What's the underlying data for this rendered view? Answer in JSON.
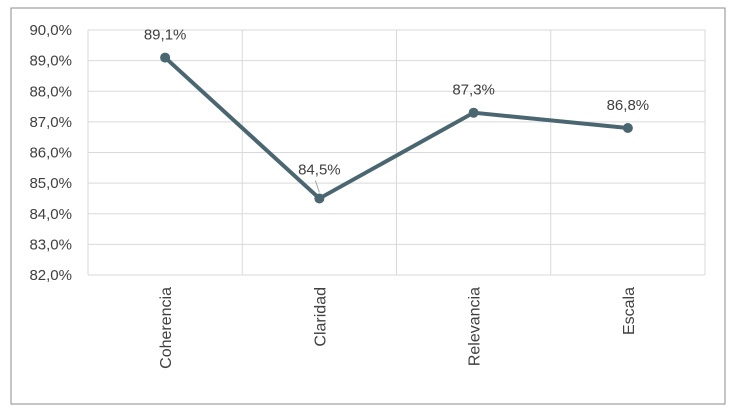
{
  "chart_data": {
    "type": "line",
    "title": "",
    "xlabel": "",
    "ylabel": "",
    "categories": [
      "Coherencia",
      "Claridad",
      "Relevancia",
      "Escala"
    ],
    "series": [
      {
        "values": [
          89.1,
          84.5,
          87.3,
          86.8
        ],
        "labels": [
          "89,1%",
          "84,5%",
          "87,3%",
          "86,8%"
        ]
      }
    ],
    "ylim": [
      82,
      90
    ],
    "yticks": [
      90,
      89,
      88,
      87,
      86,
      85,
      84,
      83,
      82
    ],
    "ytick_labels": [
      "90,0%",
      "89,0%",
      "88,0%",
      "87,0%",
      "86,0%",
      "85,0%",
      "84,0%",
      "83,0%",
      "82,0%"
    ],
    "grid": true,
    "legend": "none",
    "colors": {
      "line": "#4a6670",
      "grid": "#d9d9d9",
      "axis_text": "#404040",
      "frame": "#8c8c8c"
    }
  }
}
